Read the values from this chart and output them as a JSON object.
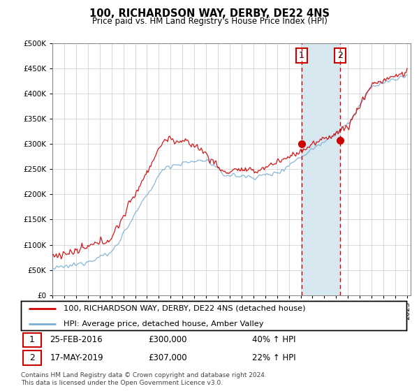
{
  "title": "100, RICHARDSON WAY, DERBY, DE22 4NS",
  "subtitle": "Price paid vs. HM Land Registry's House Price Index (HPI)",
  "legend_line1": "100, RICHARDSON WAY, DERBY, DE22 4NS (detached house)",
  "legend_line2": "HPI: Average price, detached house, Amber Valley",
  "transaction1_date": "25-FEB-2016",
  "transaction1_price": 300000,
  "transaction1_label": "£300,000",
  "transaction1_pct": "40% ↑ HPI",
  "transaction1_year": 2016.12,
  "transaction2_date": "17-MAY-2019",
  "transaction2_price": 307000,
  "transaction2_label": "£307,000",
  "transaction2_pct": "22% ↑ HPI",
  "transaction2_year": 2019.37,
  "footer": "Contains HM Land Registry data © Crown copyright and database right 2024.\nThis data is licensed under the Open Government Licence v3.0.",
  "ylim": [
    0,
    500000
  ],
  "yticks": [
    0,
    50000,
    100000,
    150000,
    200000,
    250000,
    300000,
    350000,
    400000,
    450000,
    500000
  ],
  "red_line_color": "#cc0000",
  "blue_line_color": "#7aafd4",
  "shaded_color": "#d8e8f0",
  "vline_color": "#cc0000",
  "grid_color": "#cccccc",
  "num_points": 361
}
